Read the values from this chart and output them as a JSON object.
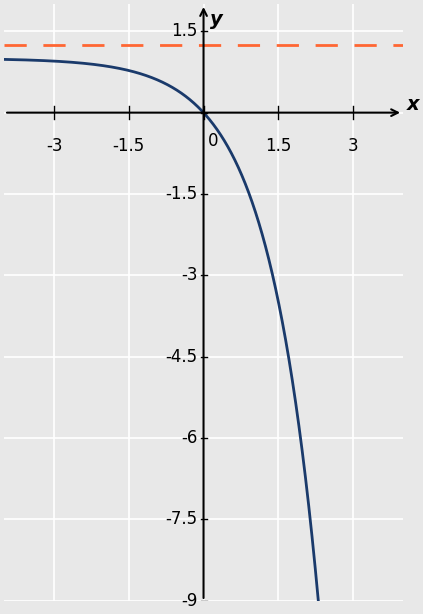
{
  "title": "",
  "xlabel": "x",
  "ylabel": "y",
  "xlim": [
    -4,
    4
  ],
  "ylim": [
    -9,
    2
  ],
  "xticks": [
    -3,
    -1.5,
    0,
    1.5,
    3
  ],
  "yticks": [
    -9,
    -7.5,
    -6,
    -4.5,
    -3,
    -1.5,
    0,
    1.5
  ],
  "asymptote_y": 1.25,
  "asymptote_color": "#FF6633",
  "curve_color": "#1a3a6b",
  "background_color": "#e8e8e8",
  "grid_color": "#ffffff",
  "c": 1.0,
  "tick_fontsize": 12,
  "label_fontsize": 14
}
